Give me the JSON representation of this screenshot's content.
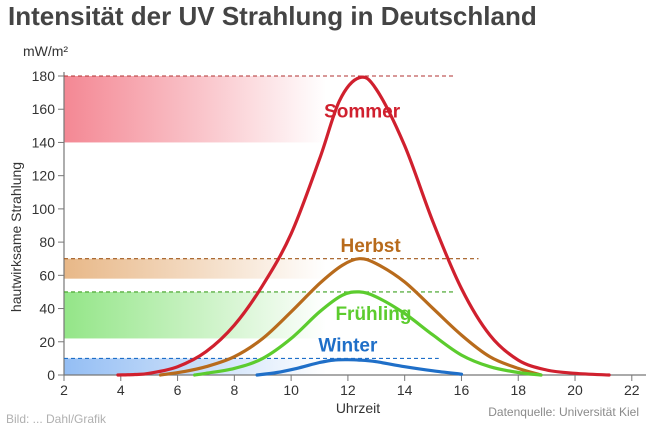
{
  "chart_data": {
    "type": "line",
    "title": "Intensität der UV Strahlung in Deutschland",
    "xlabel": "Uhrzeit",
    "ylabel": "hautwirksame Strahlung",
    "yunit": "mW/m²",
    "xlim": [
      2,
      22.5
    ],
    "ylim": [
      0,
      180
    ],
    "xticks": [
      2,
      4,
      6,
      8,
      10,
      12,
      14,
      16,
      18,
      20,
      22
    ],
    "yticks": [
      0,
      20,
      40,
      60,
      80,
      100,
      120,
      140,
      160,
      180
    ],
    "grid": false,
    "legend": "inline labels",
    "series": [
      {
        "name": "Sommer",
        "color": "#d0202e",
        "points": [
          [
            3.9,
            0
          ],
          [
            4.5,
            0.3
          ],
          [
            5,
            1
          ],
          [
            6,
            5
          ],
          [
            7,
            14
          ],
          [
            8,
            30
          ],
          [
            9,
            54
          ],
          [
            10,
            85
          ],
          [
            11,
            130
          ],
          [
            11.7,
            165
          ],
          [
            12.4,
            179
          ],
          [
            13,
            172
          ],
          [
            14,
            138
          ],
          [
            15,
            92
          ],
          [
            16,
            52
          ],
          [
            17,
            24
          ],
          [
            18,
            9
          ],
          [
            19,
            3
          ],
          [
            20,
            1
          ],
          [
            21.2,
            0
          ]
        ]
      },
      {
        "name": "Herbst",
        "color": "#b86b1c",
        "points": [
          [
            5.4,
            0
          ],
          [
            6.2,
            2
          ],
          [
            7,
            5
          ],
          [
            8,
            11
          ],
          [
            9,
            22
          ],
          [
            10,
            38
          ],
          [
            11,
            55
          ],
          [
            11.8,
            66
          ],
          [
            12.4,
            70
          ],
          [
            13,
            67
          ],
          [
            14,
            56
          ],
          [
            15,
            40
          ],
          [
            16,
            24
          ],
          [
            17,
            11
          ],
          [
            18,
            4
          ],
          [
            18.8,
            0
          ]
        ]
      },
      {
        "name": "Frühling",
        "color": "#5ccc2e",
        "points": [
          [
            6.6,
            0
          ],
          [
            7,
            1
          ],
          [
            8,
            4
          ],
          [
            9,
            10
          ],
          [
            10,
            22
          ],
          [
            11,
            38
          ],
          [
            11.8,
            48
          ],
          [
            12.4,
            50
          ],
          [
            13,
            47
          ],
          [
            14,
            37
          ],
          [
            15,
            24
          ],
          [
            16,
            12
          ],
          [
            17,
            5
          ],
          [
            18,
            1.5
          ],
          [
            18.8,
            0
          ]
        ]
      },
      {
        "name": "Winter",
        "color": "#1f6fc8",
        "points": [
          [
            8.8,
            0
          ],
          [
            9.5,
            1.5
          ],
          [
            10.2,
            4
          ],
          [
            11,
            7.5
          ],
          [
            11.5,
            9
          ],
          [
            12,
            9.2
          ],
          [
            12.4,
            9
          ],
          [
            13,
            8
          ],
          [
            14,
            5
          ],
          [
            15,
            2.5
          ],
          [
            16,
            0.5
          ]
        ]
      }
    ],
    "reference_lines": [
      {
        "series": "Sommer",
        "value": 180,
        "color": "#b03030",
        "x_end": 15.8
      },
      {
        "series": "Herbst",
        "value": 70,
        "color": "#a0581a",
        "x_end": 16.6
      },
      {
        "series": "Frühling",
        "value": 50,
        "color": "#3ea022",
        "x_end": 15.8
      },
      {
        "series": "Winter",
        "value": 10,
        "color": "#1f6fc8",
        "x_end": 15.2
      }
    ],
    "bands": [
      {
        "series": "Sommer",
        "from": 140,
        "to": 180,
        "color": "#f06070"
      },
      {
        "series": "Herbst",
        "from": 58,
        "to": 70,
        "color": "#e0a060"
      },
      {
        "series": "Frühling",
        "from": 22,
        "to": 50,
        "color": "#70dd60"
      },
      {
        "series": "Winter",
        "from": 0,
        "to": 10,
        "color": "#70a8f0"
      }
    ],
    "series_label_positions": [
      {
        "series": "Sommer",
        "x": 12.5,
        "y": 155
      },
      {
        "series": "Herbst",
        "x": 12.8,
        "y": 74
      },
      {
        "series": "Frühling",
        "x": 12.9,
        "y": 33
      },
      {
        "series": "Winter",
        "x": 12.0,
        "y": 14
      }
    ]
  },
  "credit": "Datenquelle: Universität Kiel",
  "credit_left": "Bild: ... Dahl/Grafik"
}
